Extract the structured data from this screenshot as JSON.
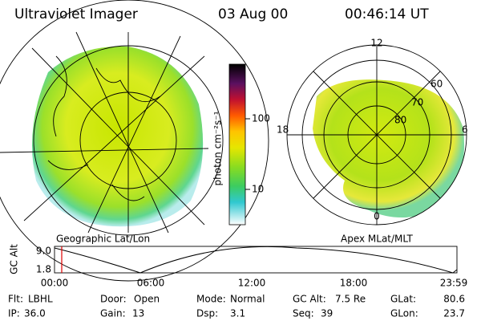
{
  "header": {
    "title": "Ultraviolet Imager",
    "date": "03 Aug 00",
    "time": "00:46:14 UT"
  },
  "left_image": {
    "label": "Geographic Lat/Lon"
  },
  "colorbar": {
    "axis_label": "photon cm⁻²s⁻¹",
    "ticks": [
      "100",
      "10"
    ]
  },
  "right_image": {
    "label": "Apex MLat/MLT",
    "lat_labels": [
      "60",
      "70",
      "80"
    ],
    "mlt_labels": [
      "12",
      "18",
      "6",
      "0"
    ]
  },
  "altitude_plot": {
    "axis_label": "GC Alt",
    "ticks": [
      "9.0",
      "1.8"
    ],
    "time_ticks": [
      "00:00",
      "06:00",
      "12:00",
      "18:00",
      "23:59"
    ]
  },
  "status": [
    [
      {
        "label": "Flt:",
        "value": "LBHL"
      },
      {
        "label": "Door:",
        "value": "Open"
      },
      {
        "label": "Mode:",
        "value": "Normal"
      },
      {
        "label": "GC Alt:",
        "value": "7.5 Re"
      },
      {
        "label": "GLat:",
        "value": "80.6"
      }
    ],
    [
      {
        "label": "IP:",
        "value": "36.0"
      },
      {
        "label": "Gain:",
        "value": "13"
      },
      {
        "label": "Dsp:",
        "value": "3.1"
      },
      {
        "label": "Seq:",
        "value": "39"
      },
      {
        "label": "GLon:",
        "value": "23.7"
      }
    ]
  ]
}
